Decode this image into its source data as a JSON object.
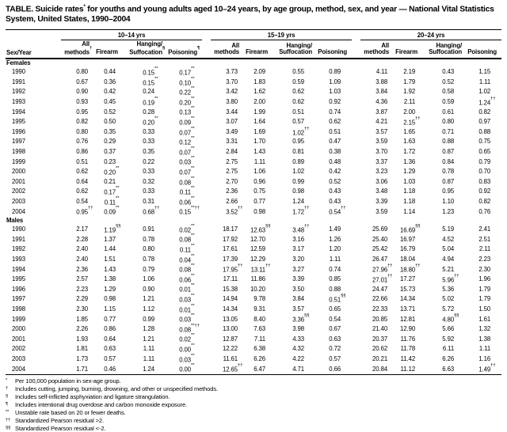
{
  "title": {
    "main": "TABLE. Suicide rates",
    "sup": "*",
    "rest": " for youths and young adults aged 10–24 years, by age group, method, sex, and year — National Vital Statistics System, United States, 1990–2004"
  },
  "table": {
    "row_label": "Sex/Year",
    "groups": [
      {
        "label": "10–14 yrs",
        "columns": [
          [
            "All",
            "methods†"
          ],
          [
            "Firearm"
          ],
          [
            "Hanging/",
            "Suffocation§"
          ],
          [
            "Poisoning¶"
          ]
        ]
      },
      {
        "label": "15–19 yrs",
        "columns": [
          [
            "All",
            "methods"
          ],
          [
            "Firearm"
          ],
          [
            "Hanging/",
            "Suffocation"
          ],
          [
            "Poisoning"
          ]
        ]
      },
      {
        "label": "20–24 yrs",
        "columns": [
          [
            "All",
            "methods"
          ],
          [
            "Firearm"
          ],
          [
            "Hanging/",
            "Suffocation"
          ],
          [
            "Poisoning"
          ]
        ]
      }
    ],
    "sections": [
      {
        "label": "Females",
        "rows": [
          {
            "year": "1990",
            "values": [
              "0.80",
              "0.44",
              "0.15**",
              "0.17**",
              "3.73",
              "2.09",
              "0.55",
              "0.89",
              "4.11",
              "2.19",
              "0.43",
              "1.15"
            ]
          },
          {
            "year": "1991",
            "values": [
              "0.67",
              "0.36",
              "0.15**",
              "0.10**",
              "3.70",
              "1.83",
              "0.59",
              "1.09",
              "3.88",
              "1.79",
              "0.52",
              "1.11"
            ]
          },
          {
            "year": "1992",
            "values": [
              "0.90",
              "0.42",
              "0.24",
              "0.22**",
              "3.42",
              "1.62",
              "0.62",
              "1.03",
              "3.84",
              "1.92",
              "0.58",
              "1.02"
            ]
          },
          {
            "year": "1993",
            "values": [
              "0.93",
              "0.45",
              "0.19**",
              "0.20**",
              "3.80",
              "2.00",
              "0.62",
              "0.92",
              "4.36",
              "2.11",
              "0.59",
              "1.24††"
            ]
          },
          {
            "year": "1994",
            "values": [
              "0.95",
              "0.52",
              "0.28",
              "0.13**",
              "3.44",
              "1.99",
              "0.51",
              "0.74",
              "3.87",
              "2.00",
              "0.61",
              "0.82"
            ]
          },
          {
            "year": "1995",
            "values": [
              "0.82",
              "0.50",
              "0.20**",
              "0.09**",
              "3.07",
              "1.64",
              "0.57",
              "0.62",
              "4.21",
              "2.15††",
              "0.80",
              "0.97"
            ]
          },
          {
            "year": "1996",
            "values": [
              "0.80",
              "0.35",
              "0.33",
              "0.07**",
              "3.49",
              "1.69",
              "1.02††",
              "0.51",
              "3.57",
              "1.65",
              "0.71",
              "0.88"
            ]
          },
          {
            "year": "1997",
            "values": [
              "0.76",
              "0.29",
              "0.33",
              "0.12**",
              "3.31",
              "1.70",
              "0.95",
              "0.47",
              "3.59",
              "1.63",
              "0.88",
              "0.75"
            ]
          },
          {
            "year": "1998",
            "values": [
              "0.86",
              "0.37",
              "0.35",
              "0.07**",
              "2.84",
              "1.43",
              "0.81",
              "0.38",
              "3.70",
              "1.72",
              "0.87",
              "0.65"
            ]
          },
          {
            "year": "1999",
            "values": [
              "0.51",
              "0.23",
              "0.22",
              "0.03**",
              "2.75",
              "1.11",
              "0.89",
              "0.48",
              "3.37",
              "1.36",
              "0.84",
              "0.79"
            ]
          },
          {
            "year": "2000",
            "values": [
              "0.62",
              "0.20**",
              "0.33",
              "0.07**",
              "2.75",
              "1.06",
              "1.02",
              "0.42",
              "3.23",
              "1.29",
              "0.78",
              "0.70"
            ]
          },
          {
            "year": "2001",
            "values": [
              "0.64",
              "0.21",
              "0.32",
              "0.08**",
              "2.70",
              "0.96",
              "0.99",
              "0.52",
              "3.06",
              "1.03",
              "0.87",
              "0.83"
            ]
          },
          {
            "year": "2002",
            "values": [
              "0.62",
              "0.17**",
              "0.33",
              "0.11**",
              "2.36",
              "0.75",
              "0.98",
              "0.43",
              "3.48",
              "1.18",
              "0.95",
              "0.92"
            ]
          },
          {
            "year": "2003",
            "values": [
              "0.54",
              "0.11**",
              "0.31",
              "0.06**",
              "2.66",
              "0.77",
              "1.24",
              "0.43",
              "3.39",
              "1.18",
              "1.10",
              "0.82"
            ]
          },
          {
            "year": "2004",
            "values": [
              "0.95††",
              "0.09**",
              "0.68††",
              "0.15**††",
              "3.52††",
              "0.98",
              "1.72††",
              "0.54††",
              "3.59",
              "1.14",
              "1.23",
              "0.76"
            ]
          }
        ]
      },
      {
        "label": "Males",
        "rows": [
          {
            "year": "1990",
            "values": [
              "2.17",
              "1.19§§",
              "0.91",
              "0.02**",
              "18.17",
              "12.63§§",
              "3.48††",
              "1.49",
              "25.69",
              "16.69§§",
              "5.19",
              "2.41"
            ]
          },
          {
            "year": "1991",
            "values": [
              "2.28",
              "1.37",
              "0.78",
              "0.08**",
              "17.92",
              "12.70",
              "3.16",
              "1.26",
              "25.40",
              "16.97",
              "4.52",
              "2.51"
            ]
          },
          {
            "year": "1992",
            "values": [
              "2.40",
              "1.44",
              "0.80",
              "0.11**",
              "17.61",
              "12.59",
              "3.17",
              "1.20",
              "25.42",
              "16.79",
              "5.04",
              "2.11"
            ]
          },
          {
            "year": "1993",
            "values": [
              "2.40",
              "1.51",
              "0.78",
              "0.04**",
              "17.39",
              "12.29",
              "3.20",
              "1.11",
              "26.47",
              "18.04",
              "4.94",
              "2.23"
            ]
          },
          {
            "year": "1994",
            "values": [
              "2.36",
              "1.43",
              "0.79",
              "0.08**",
              "17.95††",
              "13.11††",
              "3.27",
              "0.74",
              "27.96††",
              "18.80††",
              "5.21",
              "2.30"
            ]
          },
          {
            "year": "1995",
            "values": [
              "2.57",
              "1.38",
              "1.06",
              "0.06**",
              "17.11",
              "11.86",
              "3.39",
              "0.85",
              "27.01††",
              "17.27",
              "5.96††",
              "1.96"
            ]
          },
          {
            "year": "1996",
            "values": [
              "2.23",
              "1.29",
              "0.90",
              "0.01**",
              "15.38",
              "10.20",
              "3.50",
              "0.88",
              "24.47",
              "15.73",
              "5.36",
              "1.79"
            ]
          },
          {
            "year": "1997",
            "values": [
              "2.29",
              "0.98",
              "1.21",
              "0.03**",
              "14.94",
              "9.78",
              "3.84",
              "0.51§§",
              "22.66",
              "14.34",
              "5.02",
              "1.79"
            ]
          },
          {
            "year": "1998",
            "values": [
              "2.30",
              "1.15",
              "1.12",
              "0.01**",
              "14.34",
              "9.31",
              "3.57",
              "0.65",
              "22.33",
              "13.71",
              "5.72",
              "1.50"
            ]
          },
          {
            "year": "1999",
            "values": [
              "1.85",
              "0.77",
              "0.99",
              "0.03**",
              "13.05",
              "8.40",
              "3.36§§",
              "0.54",
              "20.85",
              "12.81",
              "4.80§§",
              "1.61"
            ]
          },
          {
            "year": "2000",
            "values": [
              "2.26",
              "0.86",
              "1.28",
              "0.08**††",
              "13.00",
              "7.63",
              "3.98",
              "0.67",
              "21.40",
              "12.90",
              "5.66",
              "1.32"
            ]
          },
          {
            "year": "2001",
            "values": [
              "1.93",
              "0.64",
              "1.21",
              "0.02**",
              "12.87",
              "7.11",
              "4.33",
              "0.63",
              "20.37",
              "11.76",
              "5.92",
              "1.38"
            ]
          },
          {
            "year": "2002",
            "values": [
              "1.81",
              "0.63",
              "1.11",
              "0.00**",
              "12.22",
              "6.38",
              "4.32",
              "0.72",
              "20.62",
              "11.78",
              "6.11",
              "1.11"
            ]
          },
          {
            "year": "2003",
            "values": [
              "1.73",
              "0.57",
              "1.11",
              "0.03**",
              "11.61",
              "6.26",
              "4.22",
              "0.57",
              "20.21",
              "11.42",
              "6.26",
              "1.16"
            ]
          },
          {
            "year": "2004",
            "values": [
              "1.71",
              "0.46",
              "1.24",
              "0.00**",
              "12.65††",
              "6.47",
              "4.71",
              "0.66",
              "20.84",
              "11.12",
              "6.63",
              "1.49††"
            ]
          }
        ]
      }
    ]
  },
  "footnotes": [
    {
      "symbol": "*",
      "text": "Per 100,000 population in sex-age group."
    },
    {
      "symbol": "†",
      "text": "Includes cutting, jumping, burning, drowning, and other or unspecified methods."
    },
    {
      "symbol": "§",
      "text": "Includes self-inflicted asphyxiation and ligature strangulation."
    },
    {
      "symbol": "¶",
      "text": "Includes intentional drug overdose and carbon monoxide exposure."
    },
    {
      "symbol": "**",
      "text": "Unstable rate based on 20 or fewer deaths."
    },
    {
      "symbol": "††",
      "text": "Standardized Pearson residual >2."
    },
    {
      "symbol": "§§",
      "text": "Standardized Pearson residual <-2."
    }
  ]
}
